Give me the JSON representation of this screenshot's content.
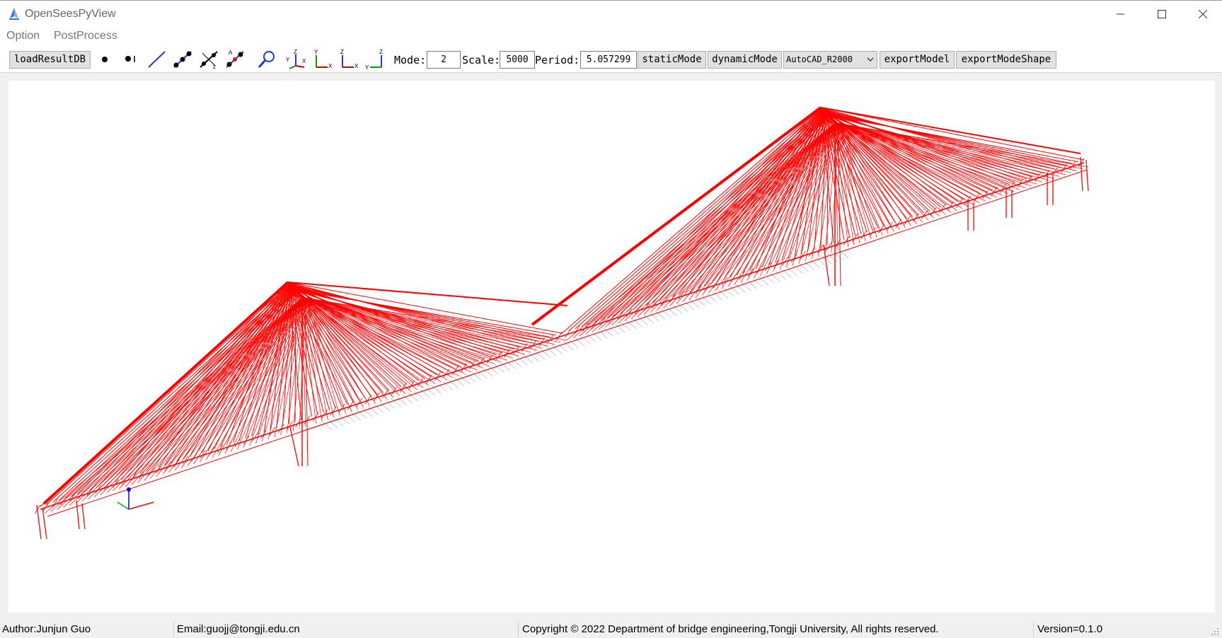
{
  "window": {
    "title": "OpenSeesPyView"
  },
  "menu": {
    "option": "Option",
    "postprocess": "PostProcess"
  },
  "toolbar": {
    "load_button": "loadResultDB",
    "mode_label": "Mode:",
    "mode_value": "2",
    "scale_label": "Scale:",
    "scale_value": "5000",
    "period_label": "Period:",
    "period_value": "5.057299",
    "static_mode": "staticMode",
    "dynamic_mode": "dynamicMode",
    "cad_format": "AutoCAD_R2000",
    "export_model": "exportModel",
    "export_mode_shape": "exportModeShape",
    "icons": [
      "node-icon",
      "node-label-icon",
      "element-icon",
      "element-nodes-icon",
      "local-axes-icon",
      "element-label-icon",
      "zoom-icon",
      "view-3d-icon",
      "view-xy-icon",
      "view-xz-icon",
      "view-yz-icon"
    ],
    "axis_letters": {
      "x": "X",
      "y": "Y",
      "z": "Z"
    }
  },
  "viewport": {
    "mode_shape_color": "#ff0000",
    "undeformed_color": "#a8a8a8",
    "triad_colors": {
      "x": "#ff0000",
      "y": "#00b000",
      "z": "#0000ff"
    }
  },
  "status": {
    "author": "Author:Junjun Guo",
    "email": "Email:guojj@tongji.edu.cn",
    "copyright": "Copyright © 2022 Department of bridge engineering,Tongji University, All rights reserved.",
    "version": "Version=0.1.0"
  }
}
